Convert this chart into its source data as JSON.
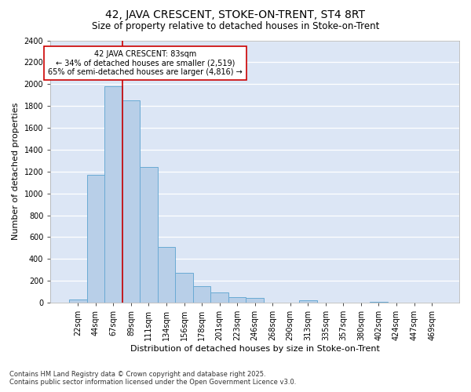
{
  "title": "42, JAVA CRESCENT, STOKE-ON-TRENT, ST4 8RT",
  "subtitle": "Size of property relative to detached houses in Stoke-on-Trent",
  "xlabel": "Distribution of detached houses by size in Stoke-on-Trent",
  "ylabel": "Number of detached properties",
  "categories": [
    "22sqm",
    "44sqm",
    "67sqm",
    "89sqm",
    "111sqm",
    "134sqm",
    "156sqm",
    "178sqm",
    "201sqm",
    "223sqm",
    "246sqm",
    "268sqm",
    "290sqm",
    "313sqm",
    "335sqm",
    "357sqm",
    "380sqm",
    "402sqm",
    "424sqm",
    "447sqm",
    "469sqm"
  ],
  "values": [
    30,
    1170,
    1980,
    1850,
    1240,
    510,
    275,
    150,
    90,
    50,
    40,
    0,
    0,
    20,
    0,
    0,
    0,
    10,
    0,
    0,
    0
  ],
  "bar_color": "#b8cfe8",
  "bar_edge_color": "#6aaad4",
  "plot_bg_color": "#dce6f5",
  "figure_bg_color": "#ffffff",
  "grid_color": "#ffffff",
  "vline_x": 3,
  "vline_color": "#cc0000",
  "annotation_text": "42 JAVA CRESCENT: 83sqm\n← 34% of detached houses are smaller (2,519)\n65% of semi-detached houses are larger (4,816) →",
  "annotation_box_facecolor": "#ffffff",
  "annotation_box_edge": "#cc0000",
  "footnote1": "Contains HM Land Registry data © Crown copyright and database right 2025.",
  "footnote2": "Contains public sector information licensed under the Open Government Licence v3.0.",
  "ylim": [
    0,
    2400
  ],
  "yticks": [
    0,
    200,
    400,
    600,
    800,
    1000,
    1200,
    1400,
    1600,
    1800,
    2000,
    2200,
    2400
  ],
  "title_fontsize": 10,
  "subtitle_fontsize": 8.5,
  "label_fontsize": 8,
  "tick_fontsize": 7,
  "annotation_fontsize": 7,
  "footnote_fontsize": 6
}
